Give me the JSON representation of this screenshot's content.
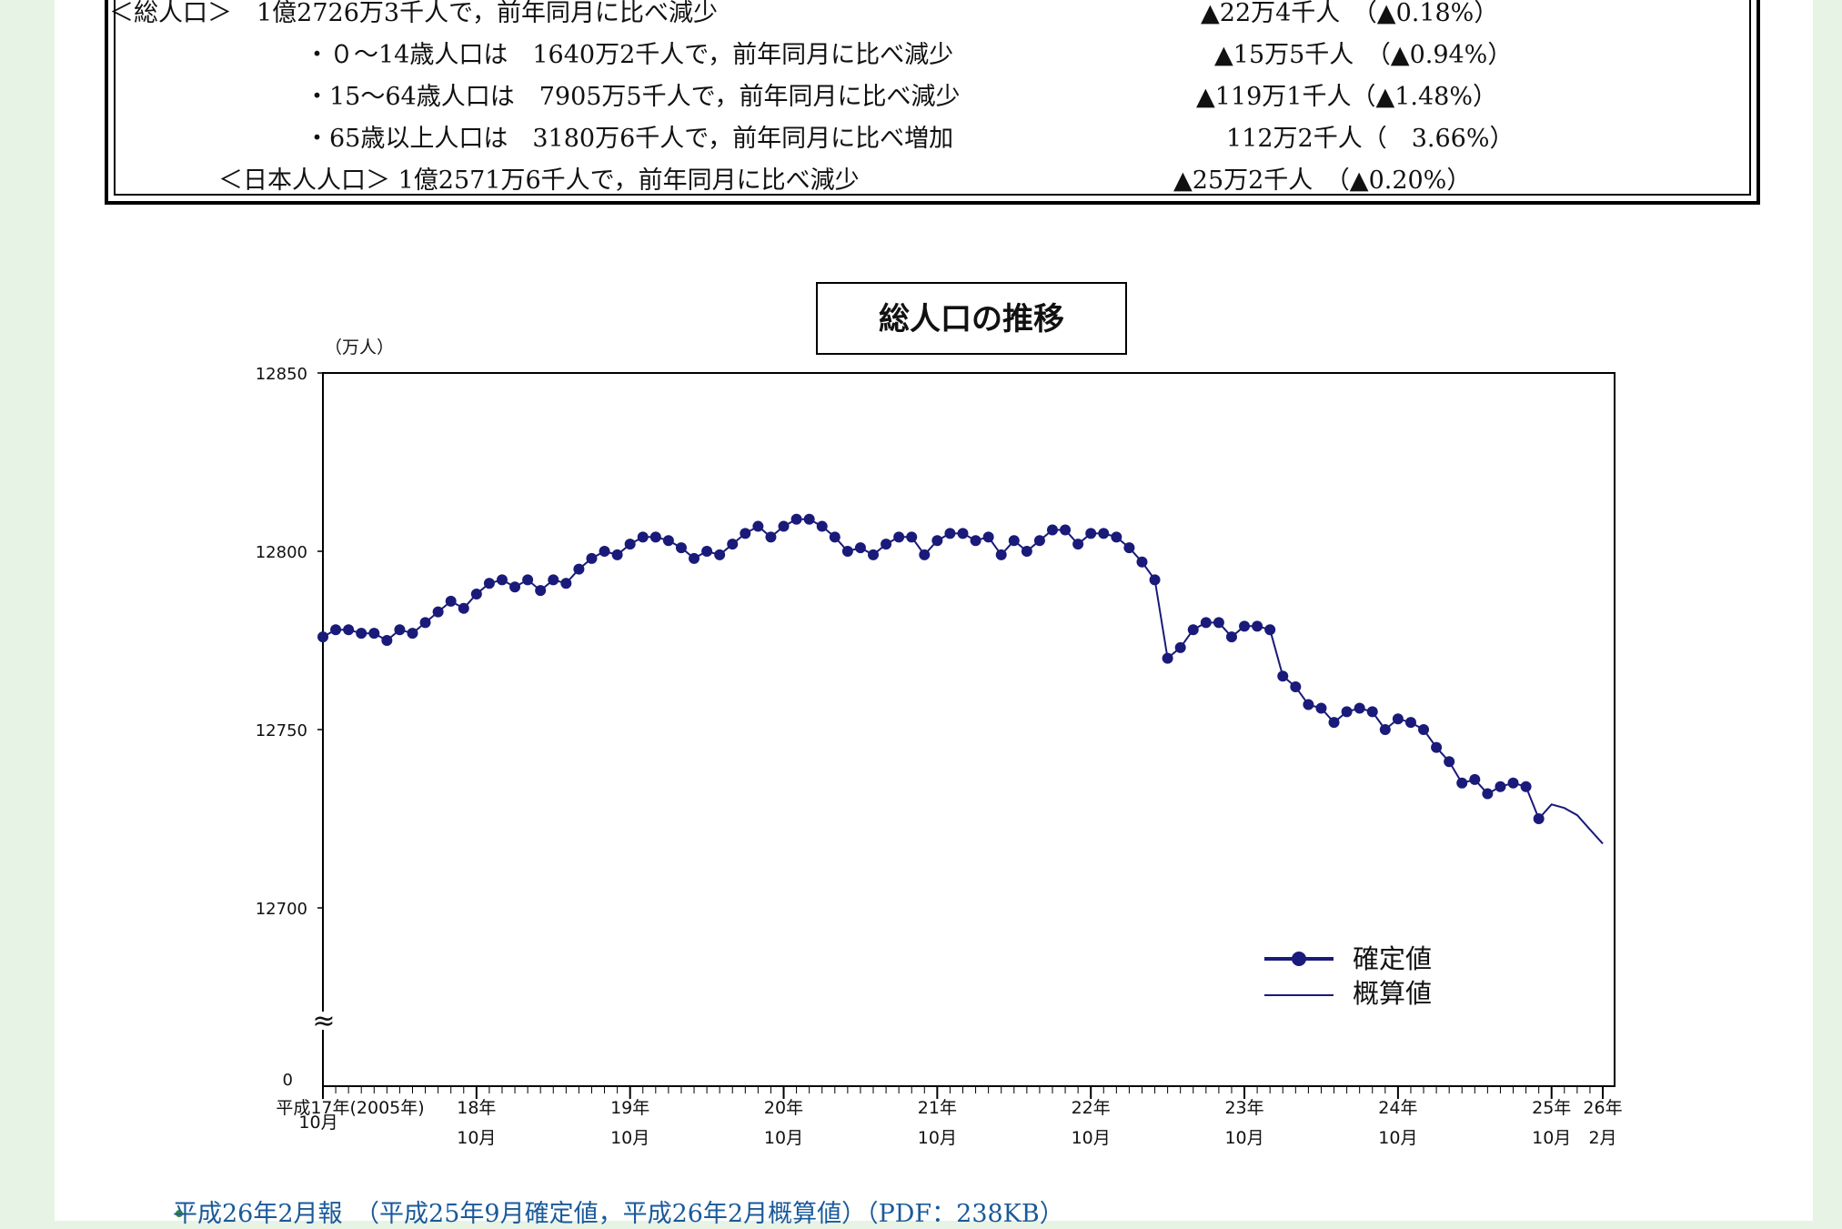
{
  "summary": {
    "total": {
      "label": "＜総人口＞　1億2726万3千人で，前年同月に比べ減少",
      "change": "▲22万4千人　（▲0.18%）"
    },
    "age_0_14": {
      "label": "・０～14歳人口は　1640万2千人で，前年同月に比べ減少",
      "change": "▲15万5千人　（▲0.94%）"
    },
    "age_15_64": {
      "label": "・15～64歳人口は　7905万5千人で，前年同月に比べ減少",
      "change": "▲119万1千人（▲1.48%）"
    },
    "age_65_plus": {
      "label": "・65歳以上人口は　3180万6千人で，前年同月に比べ増加",
      "change": "112万2千人（　3.66%）"
    },
    "japanese": {
      "label": "＜日本人人口＞ 1億2571万6千人で，前年同月に比べ減少",
      "change": "▲25万2千人　（▲0.20%）"
    }
  },
  "chart_data": {
    "type": "line",
    "title": "総人口の推移",
    "ylabel": "（万人）",
    "ylim": [
      12700,
      12850
    ],
    "yticks": [
      "12850",
      "12800",
      "12750",
      "12700",
      "0"
    ],
    "axis_break": "≈",
    "x_ticks": [
      {
        "year": "平成17年(2005年)",
        "month": "10月"
      },
      {
        "year": "18年",
        "month": "10月"
      },
      {
        "year": "19年",
        "month": "10月"
      },
      {
        "year": "20年",
        "month": "10月"
      },
      {
        "year": "21年",
        "month": "10月"
      },
      {
        "year": "22年",
        "month": "10月"
      },
      {
        "year": "23年",
        "month": "10月"
      },
      {
        "year": "24年",
        "month": "10月"
      },
      {
        "year": "25年",
        "month": "10月"
      },
      {
        "year": "26年",
        "month": "2月"
      }
    ],
    "x_start": "2005-10",
    "x_end": "2014-02",
    "series": [
      {
        "name": "確定値",
        "color": "#1a1a7a",
        "values": [
          12776,
          12778,
          12778,
          12777,
          12777,
          12775,
          12778,
          12777,
          12780,
          12783,
          12786,
          12784,
          12788,
          12791,
          12792,
          12790,
          12792,
          12789,
          12792,
          12791,
          12795,
          12798,
          12800,
          12799,
          12802,
          12804,
          12804,
          12803,
          12801,
          12798,
          12800,
          12799,
          12802,
          12805,
          12807,
          12804,
          12807,
          12809,
          12809,
          12807,
          12804,
          12800,
          12801,
          12799,
          12802,
          12804,
          12804,
          12799,
          12803,
          12805,
          12805,
          12803,
          12804,
          12799,
          12803,
          12800,
          12803,
          12806,
          12806,
          12802,
          12805,
          12805,
          12804,
          12801,
          12797,
          12792,
          12770,
          12773,
          12778,
          12780,
          12780,
          12776,
          12779,
          12779,
          12778,
          12765,
          12762,
          12757,
          12756,
          12752,
          12755,
          12756,
          12755,
          12750,
          12753,
          12752,
          12750,
          12745,
          12741,
          12735,
          12736,
          12732,
          12734,
          12735,
          12734,
          12725
        ]
      },
      {
        "name": "概算値",
        "color": "#1a1a7a",
        "values": [
          12725,
          12729,
          12728,
          12726,
          12722,
          12718
        ]
      }
    ]
  },
  "link": {
    "text": "平成26年2月報　（平成25年9月確定値，平成26年2月概算値）（PDF：238KB）"
  }
}
